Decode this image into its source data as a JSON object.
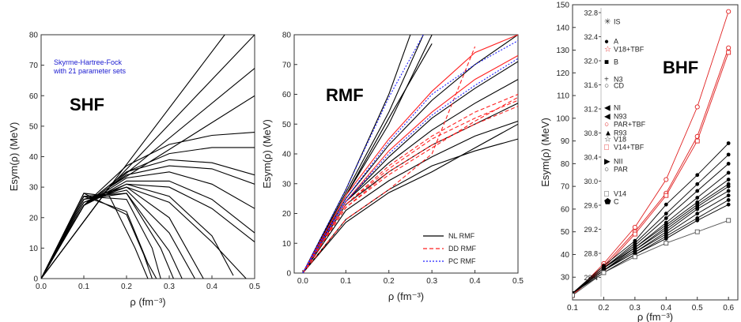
{
  "chart_data": [
    {
      "id": "shf",
      "type": "line",
      "panel_label": "SHF",
      "annotation": [
        "Skyrme-Hartree-Fock",
        "with 21 parameter sets"
      ],
      "xlabel": "ρ (fm⁻³)",
      "ylabel": "Esym(ρ) (MeV)",
      "xlim": [
        0,
        0.5
      ],
      "ylim": [
        0,
        80
      ],
      "xticks": [
        "0.0",
        "0.1",
        "0.2",
        "0.3",
        "0.4",
        "0.5"
      ],
      "yticks": [
        "0",
        "10",
        "20",
        "30",
        "40",
        "50",
        "60",
        "70",
        "80"
      ],
      "series": [
        {
          "color": "#000000",
          "x": [
            0,
            0.16,
            0.43
          ],
          "y": [
            0,
            30,
            80
          ]
        },
        {
          "color": "#000000",
          "x": [
            0,
            0.16,
            0.5
          ],
          "y": [
            0,
            30,
            80
          ]
        },
        {
          "color": "#000000",
          "x": [
            0,
            0.16,
            0.5
          ],
          "y": [
            0,
            30,
            69
          ]
        },
        {
          "color": "#000000",
          "x": [
            0,
            0.16,
            0.5
          ],
          "y": [
            0,
            30,
            60
          ]
        },
        {
          "color": "#000000",
          "x": [
            0,
            0.1,
            0.2,
            0.3,
            0.4,
            0.5
          ],
          "y": [
            0,
            24,
            37,
            44,
            47,
            48
          ]
        },
        {
          "color": "#000000",
          "x": [
            0,
            0.1,
            0.2,
            0.3,
            0.4,
            0.5
          ],
          "y": [
            0,
            24,
            35,
            41,
            43,
            43
          ]
        },
        {
          "color": "#000000",
          "x": [
            0,
            0.1,
            0.2,
            0.3,
            0.4,
            0.5
          ],
          "y": [
            0,
            24,
            35,
            39,
            38,
            34
          ]
        },
        {
          "color": "#000000",
          "x": [
            0,
            0.1,
            0.2,
            0.3,
            0.4,
            0.5
          ],
          "y": [
            0,
            24,
            34,
            37,
            36,
            31
          ]
        },
        {
          "color": "#000000",
          "x": [
            0,
            0.1,
            0.2,
            0.3,
            0.4,
            0.5
          ],
          "y": [
            0,
            24,
            33,
            35,
            31,
            23
          ]
        },
        {
          "color": "#000000",
          "x": [
            0,
            0.1,
            0.2,
            0.3,
            0.4,
            0.5
          ],
          "y": [
            0,
            24,
            32,
            32,
            26,
            15
          ]
        },
        {
          "color": "#000000",
          "x": [
            0,
            0.1,
            0.2,
            0.3,
            0.4,
            0.5
          ],
          "y": [
            0,
            24,
            31,
            30,
            23,
            12
          ]
        },
        {
          "color": "#000000",
          "x": [
            0,
            0.1,
            0.2,
            0.3,
            0.4,
            0.45
          ],
          "y": [
            0,
            25,
            31,
            27,
            14,
            1
          ]
        },
        {
          "color": "#000000",
          "x": [
            0,
            0.1,
            0.2,
            0.3,
            0.4,
            0.48
          ],
          "y": [
            0,
            25,
            30,
            25,
            12,
            0
          ]
        },
        {
          "color": "#000000",
          "x": [
            0,
            0.1,
            0.2,
            0.3,
            0.38
          ],
          "y": [
            0,
            26,
            30,
            20,
            0
          ]
        },
        {
          "color": "#000000",
          "x": [
            0,
            0.1,
            0.2,
            0.3,
            0.36
          ],
          "y": [
            0,
            26,
            29,
            15,
            0
          ]
        },
        {
          "color": "#000000",
          "x": [
            0,
            0.1,
            0.2,
            0.3,
            0.33
          ],
          "y": [
            0,
            26,
            28,
            9,
            0
          ]
        },
        {
          "color": "#000000",
          "x": [
            0,
            0.1,
            0.2,
            0.28,
            0.31
          ],
          "y": [
            0,
            27,
            28,
            10,
            0
          ]
        },
        {
          "color": "#000000",
          "x": [
            0,
            0.1,
            0.2,
            0.26,
            0.28
          ],
          "y": [
            0,
            27,
            26,
            10,
            0
          ]
        },
        {
          "color": "#000000",
          "x": [
            0,
            0.1,
            0.2,
            0.25,
            0.27
          ],
          "y": [
            0,
            27,
            22,
            5,
            0
          ]
        },
        {
          "color": "#000000",
          "x": [
            0,
            0.1,
            0.2,
            0.24,
            0.26
          ],
          "y": [
            0,
            28,
            21,
            8,
            0
          ]
        },
        {
          "color": "#000000",
          "x": [
            0,
            0.1,
            0.16,
            0.22,
            0.25
          ],
          "y": [
            0,
            28,
            27,
            10,
            0
          ]
        }
      ]
    },
    {
      "id": "rmf",
      "type": "line",
      "panel_label": "RMF",
      "xlabel": "ρ (fm⁻³)",
      "ylabel": "Esym(ρ) (MeV)",
      "xlim": [
        -0.02,
        0.5
      ],
      "ylim": [
        0,
        80
      ],
      "xticks": [
        "0.0",
        "0.1",
        "0.2",
        "0.3",
        "0.4",
        "0.5"
      ],
      "yticks": [
        "0",
        "10",
        "20",
        "30",
        "40",
        "50",
        "60",
        "70",
        "80"
      ],
      "legend": {
        "position": "bottom-right",
        "entries": [
          {
            "label": "NL RMF",
            "color": "#000000",
            "style": "solid"
          },
          {
            "label": "DD RMF",
            "color": "#ff2020",
            "style": "dashed"
          },
          {
            "label": "PC RMF",
            "color": "#2020ff",
            "style": "dotted"
          }
        ]
      },
      "series": [
        {
          "style": "solid",
          "color": "#000000",
          "x": [
            0,
            0.1,
            0.2,
            0.25
          ],
          "y": [
            0,
            28,
            60,
            80
          ]
        },
        {
          "style": "solid",
          "color": "#000000",
          "x": [
            0,
            0.1,
            0.2,
            0.28
          ],
          "y": [
            0,
            27,
            54,
            80
          ]
        },
        {
          "style": "solid",
          "color": "#000000",
          "x": [
            0,
            0.1,
            0.2,
            0.3
          ],
          "y": [
            0,
            26,
            50,
            80
          ]
        },
        {
          "style": "solid",
          "color": "#000000",
          "x": [
            0,
            0.1,
            0.2,
            0.3
          ],
          "y": [
            0,
            26,
            52,
            77
          ]
        },
        {
          "style": "solid",
          "color": "#000000",
          "x": [
            0,
            0.1,
            0.2,
            0.3,
            0.4,
            0.5
          ],
          "y": [
            0,
            25,
            43,
            58,
            70,
            80
          ]
        },
        {
          "style": "solid",
          "color": "#000000",
          "x": [
            0,
            0.1,
            0.2,
            0.3,
            0.4,
            0.5
          ],
          "y": [
            0,
            24,
            39,
            52,
            62,
            71
          ]
        },
        {
          "style": "solid",
          "color": "#000000",
          "x": [
            0,
            0.1,
            0.2,
            0.3,
            0.4,
            0.5
          ],
          "y": [
            0,
            24,
            37,
            48,
            57,
            65
          ]
        },
        {
          "style": "solid",
          "color": "#000000",
          "x": [
            0,
            0.1,
            0.2,
            0.3,
            0.4,
            0.5
          ],
          "y": [
            0,
            23,
            34,
            43,
            50,
            57
          ]
        },
        {
          "style": "solid",
          "color": "#000000",
          "x": [
            0,
            0.1,
            0.2,
            0.3,
            0.4,
            0.5
          ],
          "y": [
            0,
            21,
            31,
            39,
            46,
            51
          ]
        },
        {
          "style": "solid",
          "color": "#000000",
          "x": [
            0,
            0.1,
            0.2,
            0.3,
            0.4,
            0.5
          ],
          "y": [
            0,
            18,
            28,
            36,
            41,
            45
          ]
        },
        {
          "style": "solid",
          "color": "#000000",
          "x": [
            0,
            0.1,
            0.2,
            0.3,
            0.4,
            0.5
          ],
          "y": [
            0,
            17,
            27,
            34,
            42,
            50
          ]
        },
        {
          "style": "solid",
          "color": "#ff2020",
          "x": [
            0,
            0.1,
            0.2,
            0.3,
            0.4,
            0.5
          ],
          "y": [
            0,
            26,
            45,
            61,
            74,
            80
          ]
        },
        {
          "style": "solid",
          "color": "#ff2020",
          "x": [
            0,
            0.1,
            0.2,
            0.3,
            0.4,
            0.5
          ],
          "y": [
            0,
            24,
            41,
            54,
            65,
            73
          ]
        },
        {
          "style": "dashed",
          "color": "#ff2020",
          "x": [
            0,
            0.1,
            0.2,
            0.3,
            0.4,
            0.5
          ],
          "y": [
            0,
            23,
            36,
            46,
            54,
            60
          ]
        },
        {
          "style": "dashed",
          "color": "#ff2020",
          "x": [
            0,
            0.1,
            0.2,
            0.3,
            0.4,
            0.5
          ],
          "y": [
            0,
            23,
            35,
            45,
            52,
            58
          ]
        },
        {
          "style": "dashed",
          "color": "#ff2020",
          "x": [
            0,
            0.1,
            0.2,
            0.3,
            0.4,
            0.5
          ],
          "y": [
            0,
            22,
            34,
            43,
            50,
            56
          ]
        },
        {
          "style": "dashed",
          "color": "#ff2020",
          "x": [
            0,
            0.1,
            0.2,
            0.3,
            0.4,
            0.5
          ],
          "y": [
            0,
            22,
            33,
            42,
            51,
            59
          ]
        },
        {
          "style": "dashed",
          "color": "#ff2020",
          "x": [
            0,
            0.1,
            0.2,
            0.3,
            0.35,
            0.4
          ],
          "y": [
            0,
            18,
            28,
            40,
            58,
            76
          ]
        },
        {
          "style": "dotted",
          "color": "#2020ff",
          "x": [
            0,
            0.1,
            0.2,
            0.28
          ],
          "y": [
            0,
            28,
            59,
            80
          ]
        },
        {
          "style": "dotted",
          "color": "#2020ff",
          "x": [
            0,
            0.1,
            0.2,
            0.3,
            0.4,
            0.5
          ],
          "y": [
            0,
            25,
            44,
            60,
            70,
            78
          ]
        },
        {
          "style": "dotted",
          "color": "#2020ff",
          "x": [
            0,
            0.1,
            0.2,
            0.3,
            0.4,
            0.5
          ],
          "y": [
            0,
            24,
            40,
            53,
            63,
            72
          ]
        }
      ]
    },
    {
      "id": "bhf",
      "type": "scatter",
      "panel_label": "BHF",
      "xlabel": "ρ (fm⁻³)",
      "ylabel": "Esym(ρ) (MeV)",
      "xlim": [
        0.1,
        0.63
      ],
      "ylim": [
        20,
        150
      ],
      "xticks": [
        "0.1",
        "0.2",
        "0.3",
        "0.4",
        "0.5",
        "0.6"
      ],
      "yticks": [
        "30",
        "40",
        "50",
        "60",
        "70",
        "80",
        "90",
        "100",
        "110",
        "120",
        "130",
        "140",
        "150"
      ],
      "legend_scale": [
        "32.8",
        "32.4",
        "32.0",
        "31.6",
        "31.2",
        "30.8",
        "30.4",
        "30.0",
        "29.6",
        "29.2",
        "28.8",
        "28.4"
      ],
      "legend_entries": [
        {
          "label": "IS",
          "marker": "✳",
          "color": "#333333"
        },
        {
          "label": "A",
          "marker": "●",
          "color": "#000000"
        },
        {
          "label": "V18+TBF",
          "marker": "☆",
          "color": "#e02020"
        },
        {
          "label": "B",
          "marker": "■",
          "color": "#000000"
        },
        {
          "label": "N3",
          "marker": "+",
          "color": "#333333"
        },
        {
          "label": "CD",
          "marker": "○",
          "color": "#333333"
        },
        {
          "label": "NI",
          "marker": "◀",
          "color": "#000000"
        },
        {
          "label": "N93",
          "marker": "◀",
          "color": "#000000"
        },
        {
          "label": "PAR+TBF",
          "marker": "○",
          "color": "#e02020"
        },
        {
          "label": "R93",
          "marker": "▲",
          "color": "#000000"
        },
        {
          "label": "V18",
          "marker": "☆",
          "color": "#333333"
        },
        {
          "label": "V14+TBF",
          "marker": "□",
          "color": "#e02020"
        },
        {
          "label": "NII",
          "marker": "▶",
          "color": "#000000"
        },
        {
          "label": "PAR",
          "marker": "○",
          "color": "#333333"
        },
        {
          "label": "V14",
          "marker": "□",
          "color": "#333333"
        },
        {
          "label": "C",
          "marker": "⬟",
          "color": "#000000"
        }
      ],
      "x": [
        0.1,
        0.2,
        0.3,
        0.4,
        0.5,
        0.6
      ],
      "series": [
        {
          "color": "#e02020",
          "marker": "star",
          "y": [
            22,
            36,
            52,
            73,
            105,
            147
          ]
        },
        {
          "color": "#e02020",
          "marker": "circle",
          "y": [
            22,
            35,
            50,
            67,
            92,
            131
          ]
        },
        {
          "color": "#e02020",
          "marker": "square",
          "y": [
            22,
            34,
            49,
            66,
            90,
            129
          ]
        },
        {
          "color": "#000000",
          "marker": "dot",
          "y": [
            23,
            35,
            46,
            62,
            75,
            89
          ]
        },
        {
          "color": "#000000",
          "marker": "dot",
          "y": [
            23,
            34,
            45,
            58,
            71,
            84
          ]
        },
        {
          "color": "#000000",
          "marker": "dot",
          "y": [
            23,
            34,
            44,
            56,
            68,
            80
          ]
        },
        {
          "color": "#000000",
          "marker": "dot",
          "y": [
            23,
            34,
            43,
            54,
            65,
            76
          ]
        },
        {
          "color": "#000000",
          "marker": "dot",
          "y": [
            23,
            33,
            43,
            53,
            63,
            73
          ]
        },
        {
          "color": "#000000",
          "marker": "dot",
          "y": [
            23,
            33,
            42,
            52,
            62,
            71
          ]
        },
        {
          "color": "#000000",
          "marker": "dot",
          "y": [
            23,
            33,
            42,
            51,
            61,
            70
          ]
        },
        {
          "color": "#000000",
          "marker": "dot",
          "y": [
            23,
            33,
            41,
            50,
            60,
            68
          ]
        },
        {
          "color": "#000000",
          "marker": "dot",
          "y": [
            23,
            33,
            41,
            49,
            58,
            66
          ]
        },
        {
          "color": "#000000",
          "marker": "dot",
          "y": [
            23,
            32,
            40,
            48,
            56,
            64
          ]
        },
        {
          "color": "#000000",
          "marker": "dot",
          "y": [
            23,
            32,
            40,
            47,
            55,
            62
          ]
        },
        {
          "color": "#555555",
          "marker": "square",
          "y": [
            22,
            32,
            39,
            45,
            50,
            55
          ]
        }
      ]
    }
  ]
}
